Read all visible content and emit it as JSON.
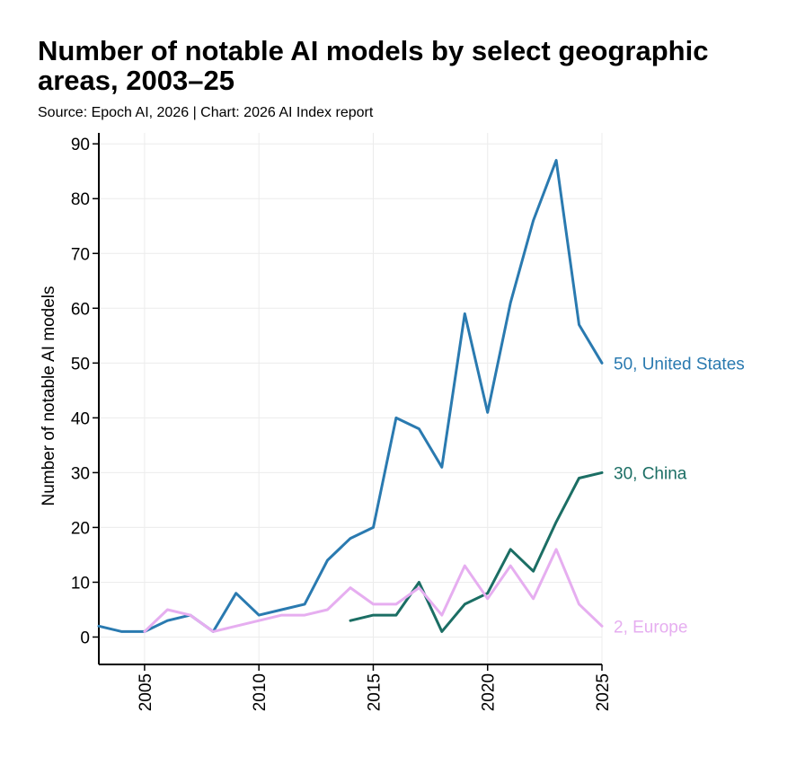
{
  "title": "Number of notable AI models by select geographic areas, 2003–25",
  "subtitle": "Source: Epoch AI, 2026 | Chart: 2026 AI Index report",
  "chart_data": {
    "type": "line",
    "title": "Number of notable AI models by select geographic areas, 2003–25",
    "subtitle": "Source: Epoch AI, 2026 | Chart: 2026 AI Index report",
    "xlabel": "",
    "ylabel": "Number of notable AI models",
    "xlim": [
      2003,
      2025
    ],
    "ylim": [
      -5,
      92
    ],
    "x_ticks": [
      2005,
      2010,
      2015,
      2020,
      2025
    ],
    "y_ticks": [
      0,
      10,
      20,
      30,
      40,
      50,
      60,
      70,
      80,
      90
    ],
    "grid": true,
    "legend": "end-of-line labels",
    "series": [
      {
        "name": "United States",
        "color": "#2a7ab0",
        "end_label": "50, United States",
        "points": [
          [
            2003,
            2
          ],
          [
            2004,
            1
          ],
          [
            2005,
            1
          ],
          [
            2006,
            3
          ],
          [
            2007,
            4
          ],
          [
            2008,
            1
          ],
          [
            2009,
            8
          ],
          [
            2010,
            4
          ],
          [
            2011,
            5
          ],
          [
            2012,
            6
          ],
          [
            2013,
            14
          ],
          [
            2014,
            18
          ],
          [
            2015,
            20
          ],
          [
            2016,
            40
          ],
          [
            2017,
            38
          ],
          [
            2018,
            31
          ],
          [
            2019,
            59
          ],
          [
            2020,
            41
          ],
          [
            2021,
            61
          ],
          [
            2022,
            76
          ],
          [
            2023,
            87
          ],
          [
            2024,
            57
          ],
          [
            2025,
            50
          ]
        ]
      },
      {
        "name": "China",
        "color": "#1b6e64",
        "end_label": "30, China",
        "points": [
          [
            2014,
            3
          ],
          [
            2015,
            4
          ],
          [
            2016,
            4
          ],
          [
            2017,
            10
          ],
          [
            2018,
            1
          ],
          [
            2019,
            6
          ],
          [
            2020,
            8
          ],
          [
            2021,
            16
          ],
          [
            2022,
            12
          ],
          [
            2023,
            21
          ],
          [
            2024,
            29
          ],
          [
            2025,
            30
          ]
        ]
      },
      {
        "name": "Europe",
        "color": "#e6aef0",
        "end_label": "2, Europe",
        "points": [
          [
            2005,
            1
          ],
          [
            2006,
            5
          ],
          [
            2007,
            4
          ],
          [
            2008,
            1
          ],
          [
            2009,
            2
          ],
          [
            2010,
            3
          ],
          [
            2011,
            4
          ],
          [
            2012,
            4
          ],
          [
            2013,
            5
          ],
          [
            2014,
            9
          ],
          [
            2015,
            6
          ],
          [
            2016,
            6
          ],
          [
            2017,
            9
          ],
          [
            2018,
            4
          ],
          [
            2019,
            13
          ],
          [
            2020,
            7
          ],
          [
            2021,
            13
          ],
          [
            2022,
            7
          ],
          [
            2023,
            16
          ],
          [
            2024,
            6
          ],
          [
            2025,
            2
          ]
        ]
      }
    ]
  }
}
